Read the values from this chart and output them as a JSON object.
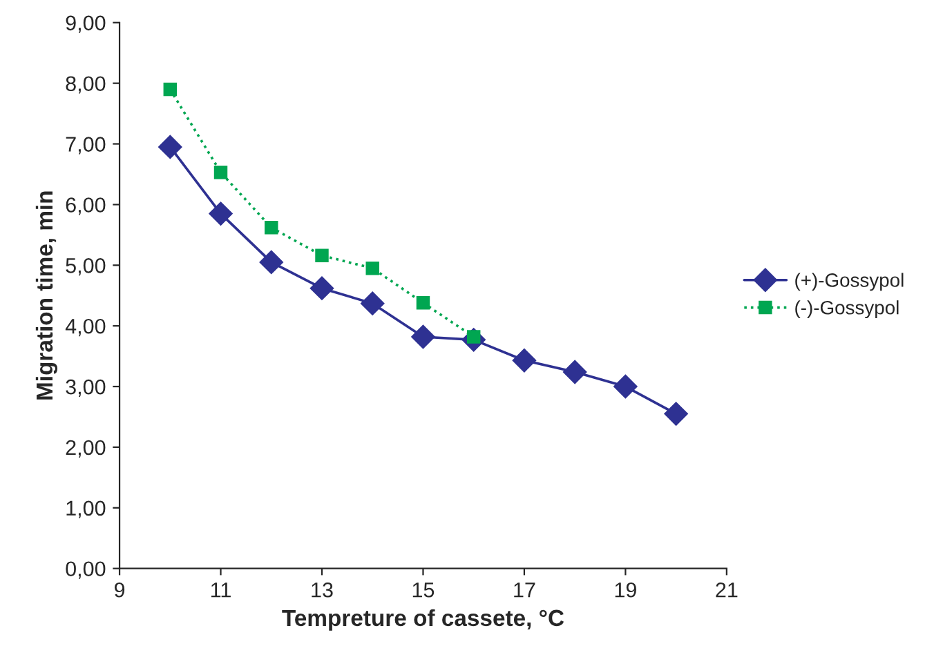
{
  "chart_data": {
    "type": "line",
    "xlabel": "Tempreture of cassete, °C",
    "ylabel": "Migration time, min",
    "x": [
      10,
      11,
      12,
      13,
      14,
      15,
      16,
      17,
      18,
      19,
      20
    ],
    "series": [
      {
        "name": "(+)-Gossypol",
        "color": "#2e3192",
        "marker": "diamond",
        "line_style": "solid",
        "values": [
          6.95,
          5.85,
          5.05,
          4.62,
          4.37,
          3.82,
          3.77,
          3.43,
          3.24,
          3.0,
          2.55
        ]
      },
      {
        "name": "(-)-Gossypol",
        "color": "#00a651",
        "marker": "square",
        "line_style": "dotted",
        "values": [
          7.9,
          6.53,
          5.62,
          5.16,
          4.95,
          4.38,
          3.82,
          null,
          null,
          null,
          null
        ]
      }
    ],
    "xlim": [
      9,
      21
    ],
    "xticks": [
      9,
      11,
      13,
      15,
      17,
      19,
      21
    ],
    "ylim": [
      0,
      9
    ],
    "yticks": [
      {
        "value": 0,
        "label": "0,00"
      },
      {
        "value": 1,
        "label": "1,00"
      },
      {
        "value": 2,
        "label": "2,00"
      },
      {
        "value": 3,
        "label": "3,00"
      },
      {
        "value": 4,
        "label": "4,00"
      },
      {
        "value": 5,
        "label": "5,00"
      },
      {
        "value": 6,
        "label": "6,00"
      },
      {
        "value": 7,
        "label": "7,00"
      },
      {
        "value": 8,
        "label": "8,00"
      },
      {
        "value": 9,
        "label": "9,00"
      }
    ],
    "grid": false,
    "legend": "right"
  }
}
